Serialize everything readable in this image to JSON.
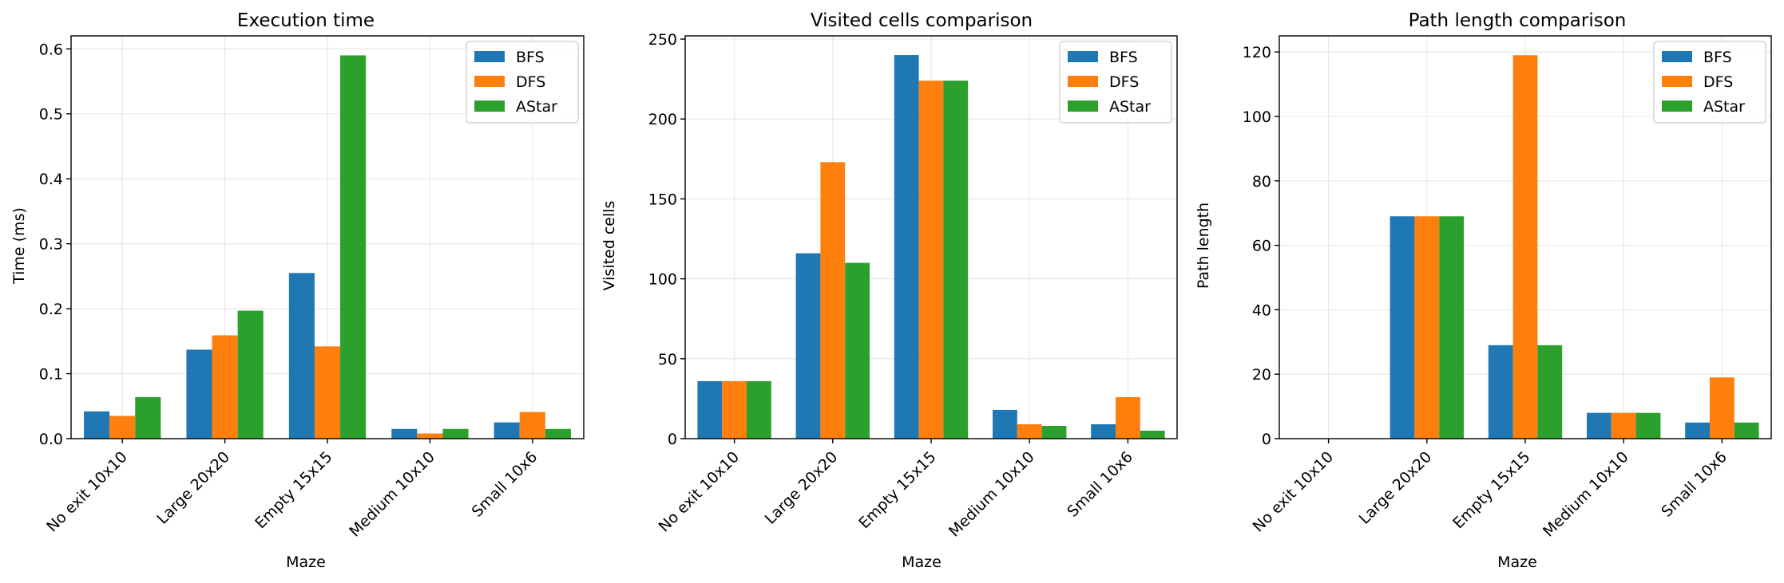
{
  "colors": {
    "BFS": "#1f77b4",
    "DFS": "#ff7f0e",
    "AStar": "#2ca02c"
  },
  "chart_data": [
    {
      "type": "bar",
      "title": "Execution time",
      "xlabel": "Maze",
      "ylabel": "Time (ms)",
      "categories": [
        "No exit 10x10",
        "Large 20x20",
        "Empty 15x15",
        "Medium 10x10",
        "Small 10x6"
      ],
      "series": [
        {
          "name": "BFS",
          "values": [
            0.042,
            0.137,
            0.255,
            0.015,
            0.025
          ]
        },
        {
          "name": "DFS",
          "values": [
            0.035,
            0.159,
            0.142,
            0.008,
            0.041
          ]
        },
        {
          "name": "AStar",
          "values": [
            0.064,
            0.197,
            0.59,
            0.015,
            0.015
          ]
        }
      ],
      "ylim": [
        0,
        0.62
      ],
      "yticks": [
        "0.0",
        "0.1",
        "0.2",
        "0.3",
        "0.4",
        "0.5",
        "0.6"
      ],
      "ytick_values": [
        0,
        0.1,
        0.2,
        0.3,
        0.4,
        0.5,
        0.6
      ],
      "grid": true,
      "legend": "top-right"
    },
    {
      "type": "bar",
      "title": "Visited cells comparison",
      "xlabel": "Maze",
      "ylabel": "Visited cells",
      "categories": [
        "No exit 10x10",
        "Large 20x20",
        "Empty 15x15",
        "Medium 10x10",
        "Small 10x6"
      ],
      "series": [
        {
          "name": "BFS",
          "values": [
            36,
            116,
            240,
            18,
            9
          ]
        },
        {
          "name": "DFS",
          "values": [
            36,
            173,
            224,
            9,
            26
          ]
        },
        {
          "name": "AStar",
          "values": [
            36,
            110,
            224,
            8,
            5
          ]
        }
      ],
      "ylim": [
        0,
        252
      ],
      "yticks": [
        "0",
        "50",
        "100",
        "150",
        "200",
        "250"
      ],
      "ytick_values": [
        0,
        50,
        100,
        150,
        200,
        250
      ],
      "grid": true,
      "legend": "top-right"
    },
    {
      "type": "bar",
      "title": "Path length comparison",
      "xlabel": "Maze",
      "ylabel": "Path length",
      "categories": [
        "No exit 10x10",
        "Large 20x20",
        "Empty 15x15",
        "Medium 10x10",
        "Small 10x6"
      ],
      "series": [
        {
          "name": "BFS",
          "values": [
            0,
            69,
            29,
            8,
            5
          ]
        },
        {
          "name": "DFS",
          "values": [
            0,
            69,
            119,
            8,
            19
          ]
        },
        {
          "name": "AStar",
          "values": [
            0,
            69,
            29,
            8,
            5
          ]
        }
      ],
      "ylim": [
        0,
        125
      ],
      "yticks": [
        "0",
        "20",
        "40",
        "60",
        "80",
        "100",
        "120"
      ],
      "ytick_values": [
        0,
        20,
        40,
        60,
        80,
        100,
        120
      ],
      "grid": true,
      "legend": "top-right"
    }
  ]
}
